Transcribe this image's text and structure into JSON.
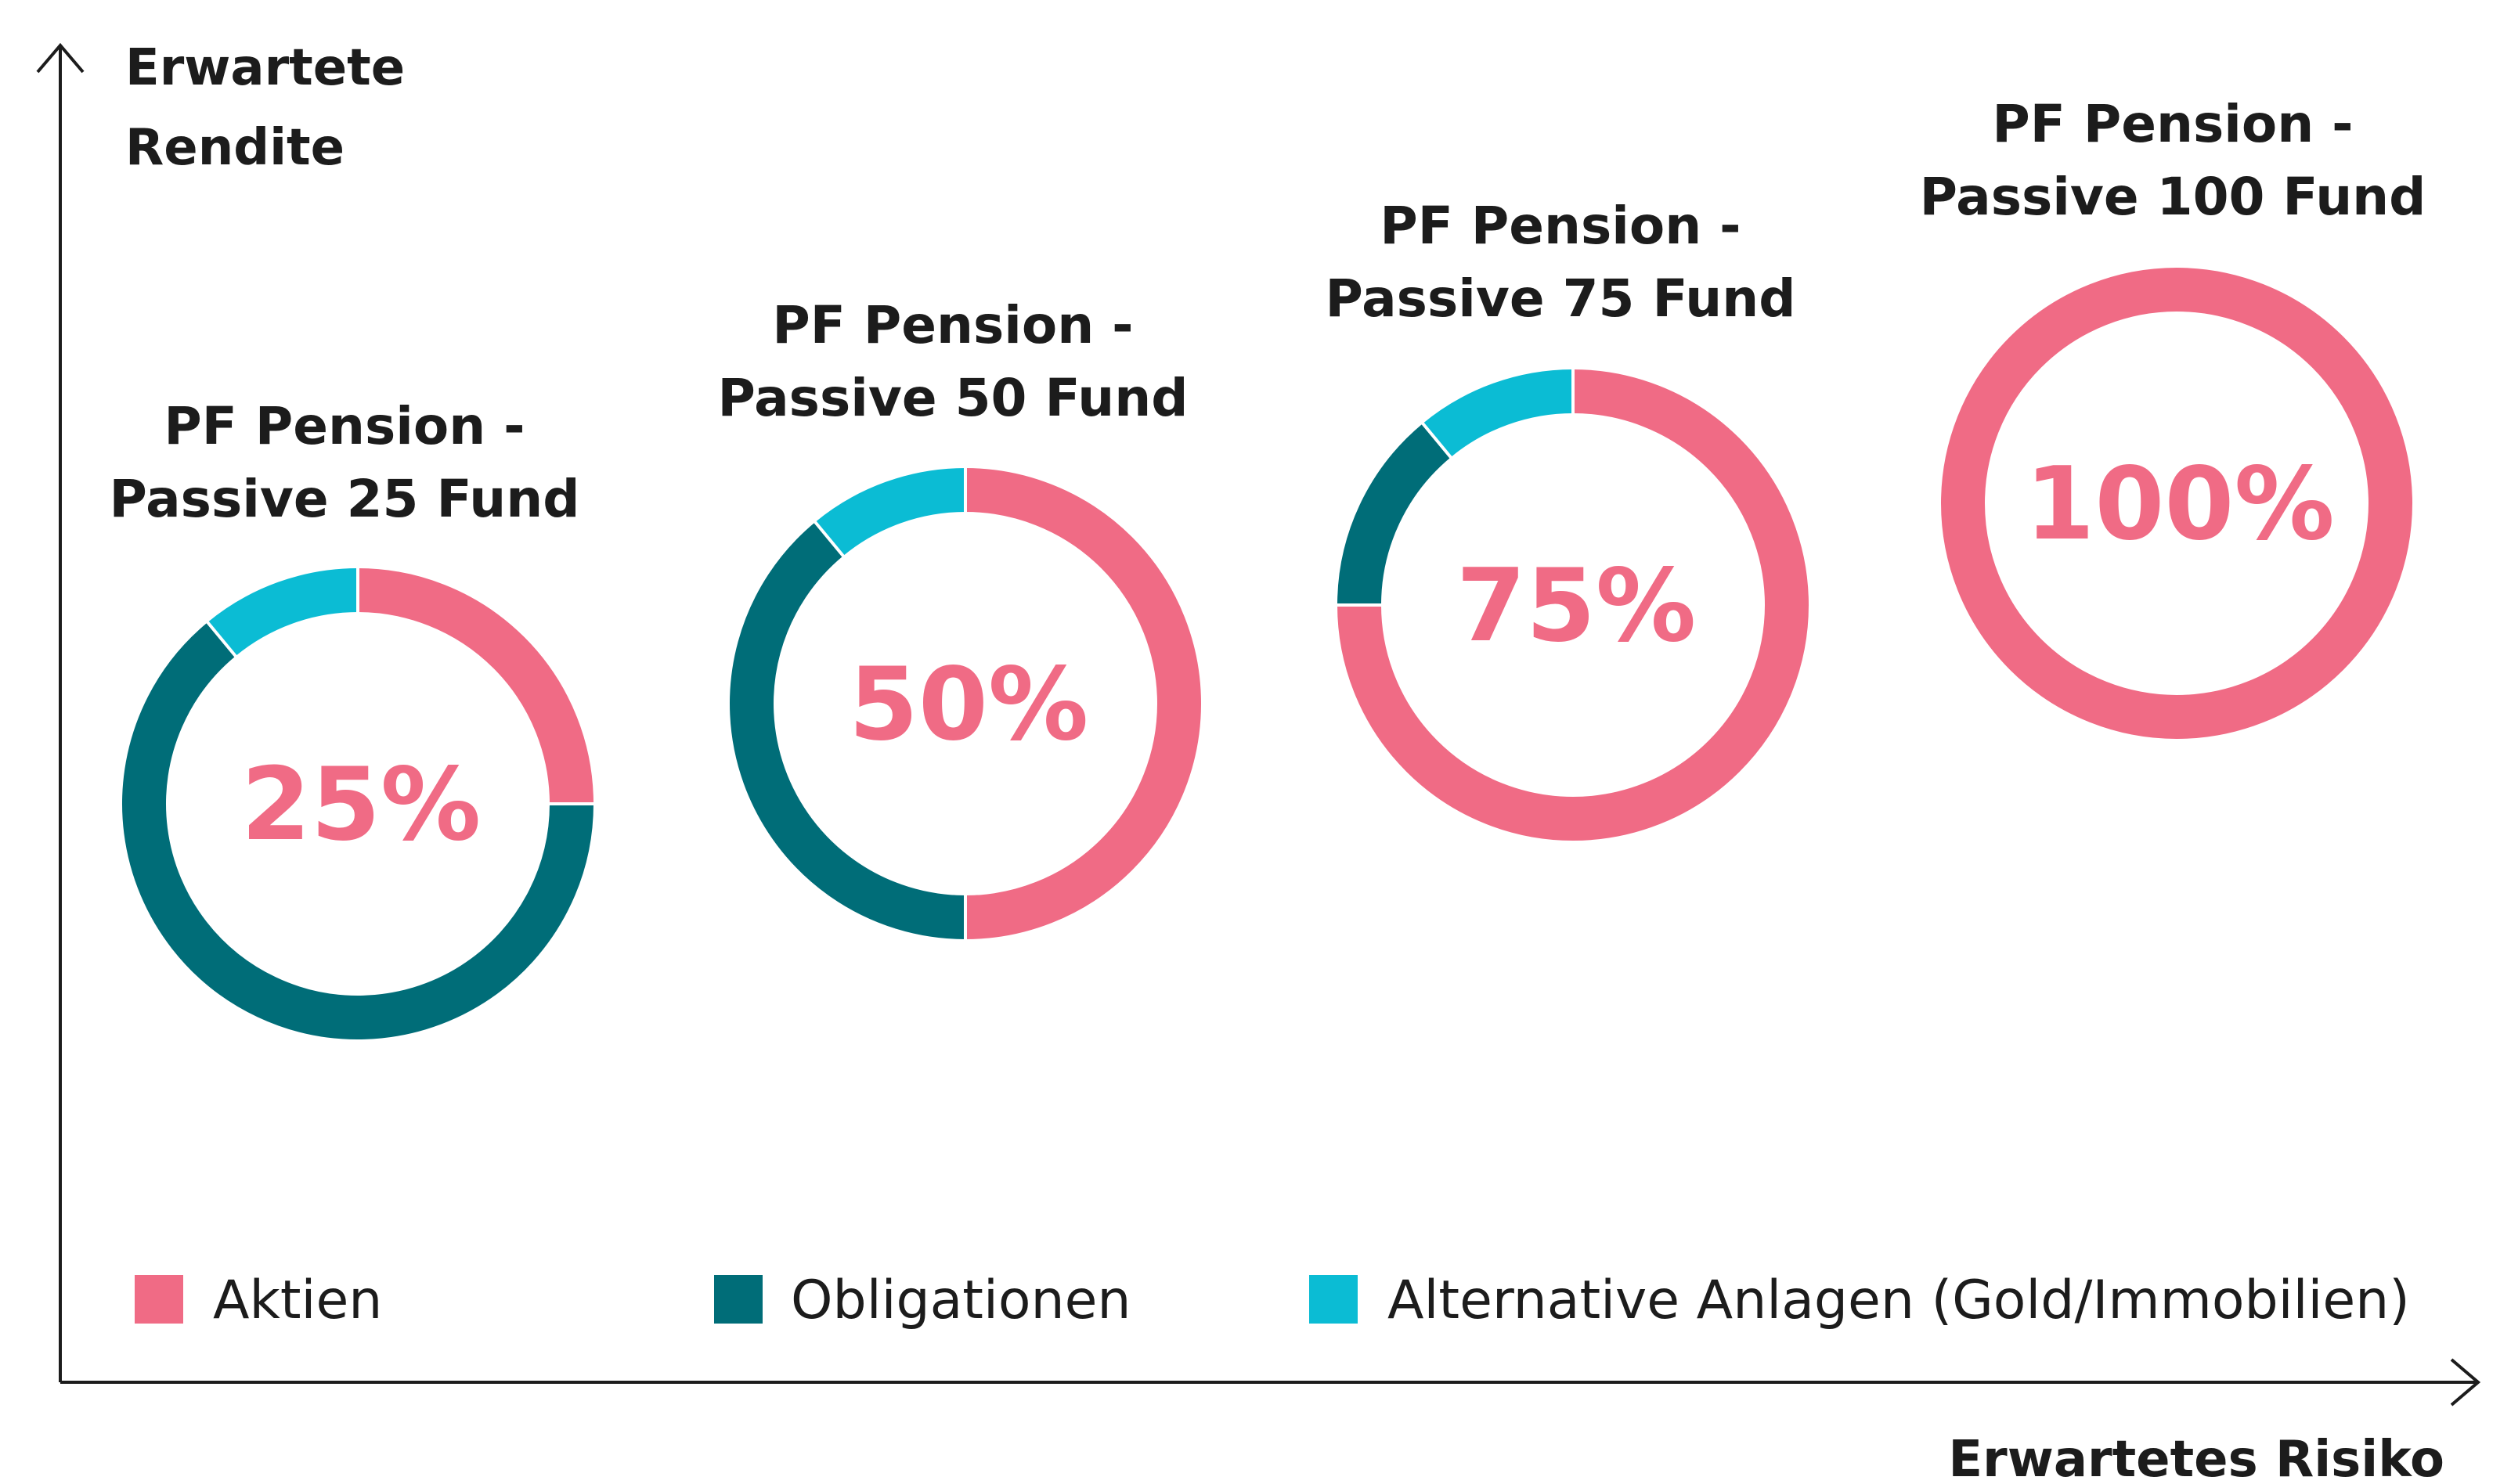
{
  "chart_data": {
    "type": "donut",
    "yaxis_title": [
      "Erwartete",
      "Rendite"
    ],
    "xaxis_title": "Erwartetes Risiko",
    "categories": [
      "Aktien",
      "Obligationen",
      "Alternative Anlagen (Gold/Immobilien)"
    ],
    "colors": {
      "Aktien": "#f06b85",
      "Obligationen": "#006d78",
      "Alternative Anlagen (Gold/Immobilien)": "#0bbcd4"
    },
    "funds": [
      {
        "title": [
          "PF Pension -",
          "Passive 25 Fund"
        ],
        "center_label": "25%",
        "slices": [
          {
            "name": "Aktien",
            "value": 25
          },
          {
            "name": "Obligationen",
            "value": 64
          },
          {
            "name": "Alternative Anlagen (Gold/Immobilien)",
            "value": 11
          }
        ]
      },
      {
        "title": [
          "PF Pension -",
          "Passive 50 Fund"
        ],
        "center_label": "50%",
        "slices": [
          {
            "name": "Aktien",
            "value": 50
          },
          {
            "name": "Obligationen",
            "value": 39
          },
          {
            "name": "Alternative Anlagen (Gold/Immobilien)",
            "value": 11
          }
        ]
      },
      {
        "title": [
          "PF Pension -",
          "Passive 75 Fund"
        ],
        "center_label": "75%",
        "slices": [
          {
            "name": "Aktien",
            "value": 75
          },
          {
            "name": "Obligationen",
            "value": 14
          },
          {
            "name": "Alternative Anlagen (Gold/Immobilien)",
            "value": 11
          }
        ]
      },
      {
        "title": [
          "PF Pension -",
          "Passive 100 Fund"
        ],
        "center_label": "100%",
        "slices": [
          {
            "name": "Aktien",
            "value": 100
          }
        ]
      }
    ],
    "legend": [
      "Aktien",
      "Obligationen",
      "Alternative Anlagen (Gold/Immobilien)"
    ]
  }
}
